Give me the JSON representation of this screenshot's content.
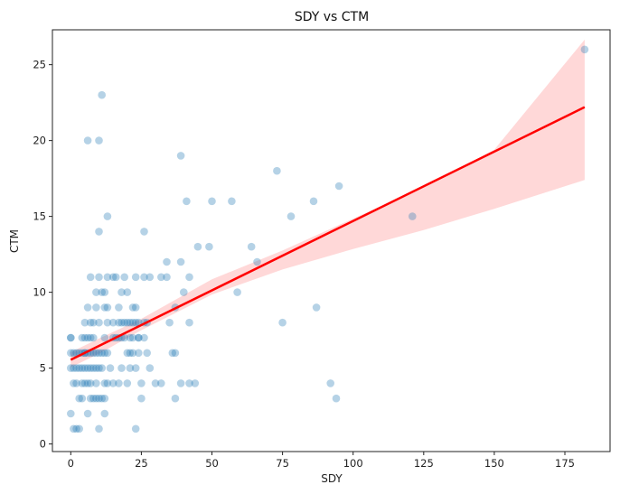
{
  "chart_data": {
    "type": "scatter",
    "title": "SDY vs CTM",
    "xlabel": "SDY",
    "ylabel": "CTM",
    "xlim": [
      -6.5,
      191
    ],
    "ylim": [
      -0.5,
      27.3
    ],
    "xticks": [
      0,
      25,
      50,
      75,
      100,
      125,
      150,
      175
    ],
    "yticks": [
      0,
      5,
      10,
      15,
      20,
      25
    ],
    "grid": false,
    "colors": {
      "points": "#1f77b4",
      "regression_line": "#ff0000",
      "confidence_band": "#ff9999"
    },
    "points": [
      [
        0,
        7
      ],
      [
        0,
        7
      ],
      [
        0,
        6
      ],
      [
        0,
        5
      ],
      [
        0,
        2
      ],
      [
        1,
        6
      ],
      [
        1,
        5
      ],
      [
        1,
        4
      ],
      [
        1,
        1
      ],
      [
        2,
        6
      ],
      [
        2,
        5
      ],
      [
        2,
        4
      ],
      [
        2,
        1
      ],
      [
        3,
        6
      ],
      [
        3,
        5
      ],
      [
        3,
        3
      ],
      [
        3,
        1
      ],
      [
        4,
        7
      ],
      [
        4,
        6
      ],
      [
        4,
        5
      ],
      [
        4,
        4
      ],
      [
        4,
        3
      ],
      [
        5,
        8
      ],
      [
        5,
        7
      ],
      [
        5,
        6
      ],
      [
        5,
        6
      ],
      [
        5,
        5
      ],
      [
        5,
        4
      ],
      [
        6,
        20
      ],
      [
        6,
        9
      ],
      [
        6,
        7
      ],
      [
        6,
        6
      ],
      [
        6,
        5
      ],
      [
        6,
        4
      ],
      [
        6,
        2
      ],
      [
        7,
        11
      ],
      [
        7,
        8
      ],
      [
        7,
        7
      ],
      [
        7,
        6
      ],
      [
        7,
        5
      ],
      [
        7,
        4
      ],
      [
        7,
        3
      ],
      [
        8,
        8
      ],
      [
        8,
        7
      ],
      [
        8,
        6
      ],
      [
        8,
        5
      ],
      [
        8,
        3
      ],
      [
        9,
        10
      ],
      [
        9,
        9
      ],
      [
        9,
        6
      ],
      [
        9,
        5
      ],
      [
        9,
        4
      ],
      [
        9,
        3
      ],
      [
        10,
        20
      ],
      [
        10,
        14
      ],
      [
        10,
        11
      ],
      [
        10,
        8
      ],
      [
        10,
        6
      ],
      [
        10,
        5
      ],
      [
        10,
        3
      ],
      [
        10,
        1
      ],
      [
        11,
        23
      ],
      [
        11,
        10
      ],
      [
        11,
        6
      ],
      [
        11,
        5
      ],
      [
        11,
        3
      ],
      [
        12,
        10
      ],
      [
        12,
        9
      ],
      [
        12,
        7
      ],
      [
        12,
        6
      ],
      [
        12,
        4
      ],
      [
        12,
        3
      ],
      [
        12,
        2
      ],
      [
        13,
        15
      ],
      [
        13,
        11
      ],
      [
        13,
        9
      ],
      [
        13,
        8
      ],
      [
        13,
        6
      ],
      [
        13,
        4
      ],
      [
        14,
        5
      ],
      [
        15,
        11
      ],
      [
        15,
        8
      ],
      [
        15,
        7
      ],
      [
        15,
        4
      ],
      [
        16,
        11
      ],
      [
        16,
        7
      ],
      [
        17,
        9
      ],
      [
        17,
        8
      ],
      [
        17,
        7
      ],
      [
        17,
        4
      ],
      [
        18,
        10
      ],
      [
        18,
        8
      ],
      [
        18,
        7
      ],
      [
        18,
        5
      ],
      [
        19,
        11
      ],
      [
        19,
        8
      ],
      [
        19,
        7
      ],
      [
        20,
        10
      ],
      [
        20,
        8
      ],
      [
        20,
        6
      ],
      [
        20,
        4
      ],
      [
        21,
        8
      ],
      [
        21,
        7
      ],
      [
        21,
        6
      ],
      [
        21,
        5
      ],
      [
        22,
        9
      ],
      [
        22,
        8
      ],
      [
        22,
        7
      ],
      [
        22,
        6
      ],
      [
        23,
        11
      ],
      [
        23,
        9
      ],
      [
        23,
        8
      ],
      [
        23,
        5
      ],
      [
        23,
        1
      ],
      [
        24,
        8
      ],
      [
        24,
        7
      ],
      [
        24,
        7
      ],
      [
        24,
        6
      ],
      [
        25,
        4
      ],
      [
        25,
        3
      ],
      [
        26,
        14
      ],
      [
        26,
        11
      ],
      [
        26,
        8
      ],
      [
        26,
        7
      ],
      [
        27,
        8
      ],
      [
        27,
        6
      ],
      [
        28,
        11
      ],
      [
        28,
        5
      ],
      [
        30,
        4
      ],
      [
        32,
        11
      ],
      [
        32,
        4
      ],
      [
        34,
        12
      ],
      [
        34,
        11
      ],
      [
        35,
        8
      ],
      [
        36,
        6
      ],
      [
        37,
        9
      ],
      [
        37,
        6
      ],
      [
        37,
        3
      ],
      [
        39,
        19
      ],
      [
        39,
        12
      ],
      [
        39,
        4
      ],
      [
        40,
        10
      ],
      [
        41,
        16
      ],
      [
        42,
        11
      ],
      [
        42,
        8
      ],
      [
        42,
        4
      ],
      [
        44,
        4
      ],
      [
        45,
        13
      ],
      [
        49,
        13
      ],
      [
        50,
        16
      ],
      [
        57,
        16
      ],
      [
        59,
        10
      ],
      [
        64,
        13
      ],
      [
        66,
        12
      ],
      [
        73,
        18
      ],
      [
        75,
        8
      ],
      [
        78,
        15
      ],
      [
        86,
        16
      ],
      [
        87,
        9
      ],
      [
        92,
        4
      ],
      [
        94,
        3
      ],
      [
        95,
        17
      ],
      [
        121,
        15
      ],
      [
        182,
        26
      ]
    ],
    "regression": {
      "x": [
        0,
        182
      ],
      "y": [
        5.55,
        22.2
      ]
    },
    "confidence_band": {
      "x": [
        0,
        10,
        25,
        50,
        75,
        100,
        125,
        150,
        182
      ],
      "lower": [
        5.05,
        5.95,
        7.5,
        9.85,
        11.5,
        12.85,
        14.1,
        15.5,
        17.4
      ],
      "upper": [
        6.05,
        6.95,
        8.25,
        10.85,
        12.75,
        14.85,
        16.95,
        19.4,
        26.65
      ]
    }
  }
}
